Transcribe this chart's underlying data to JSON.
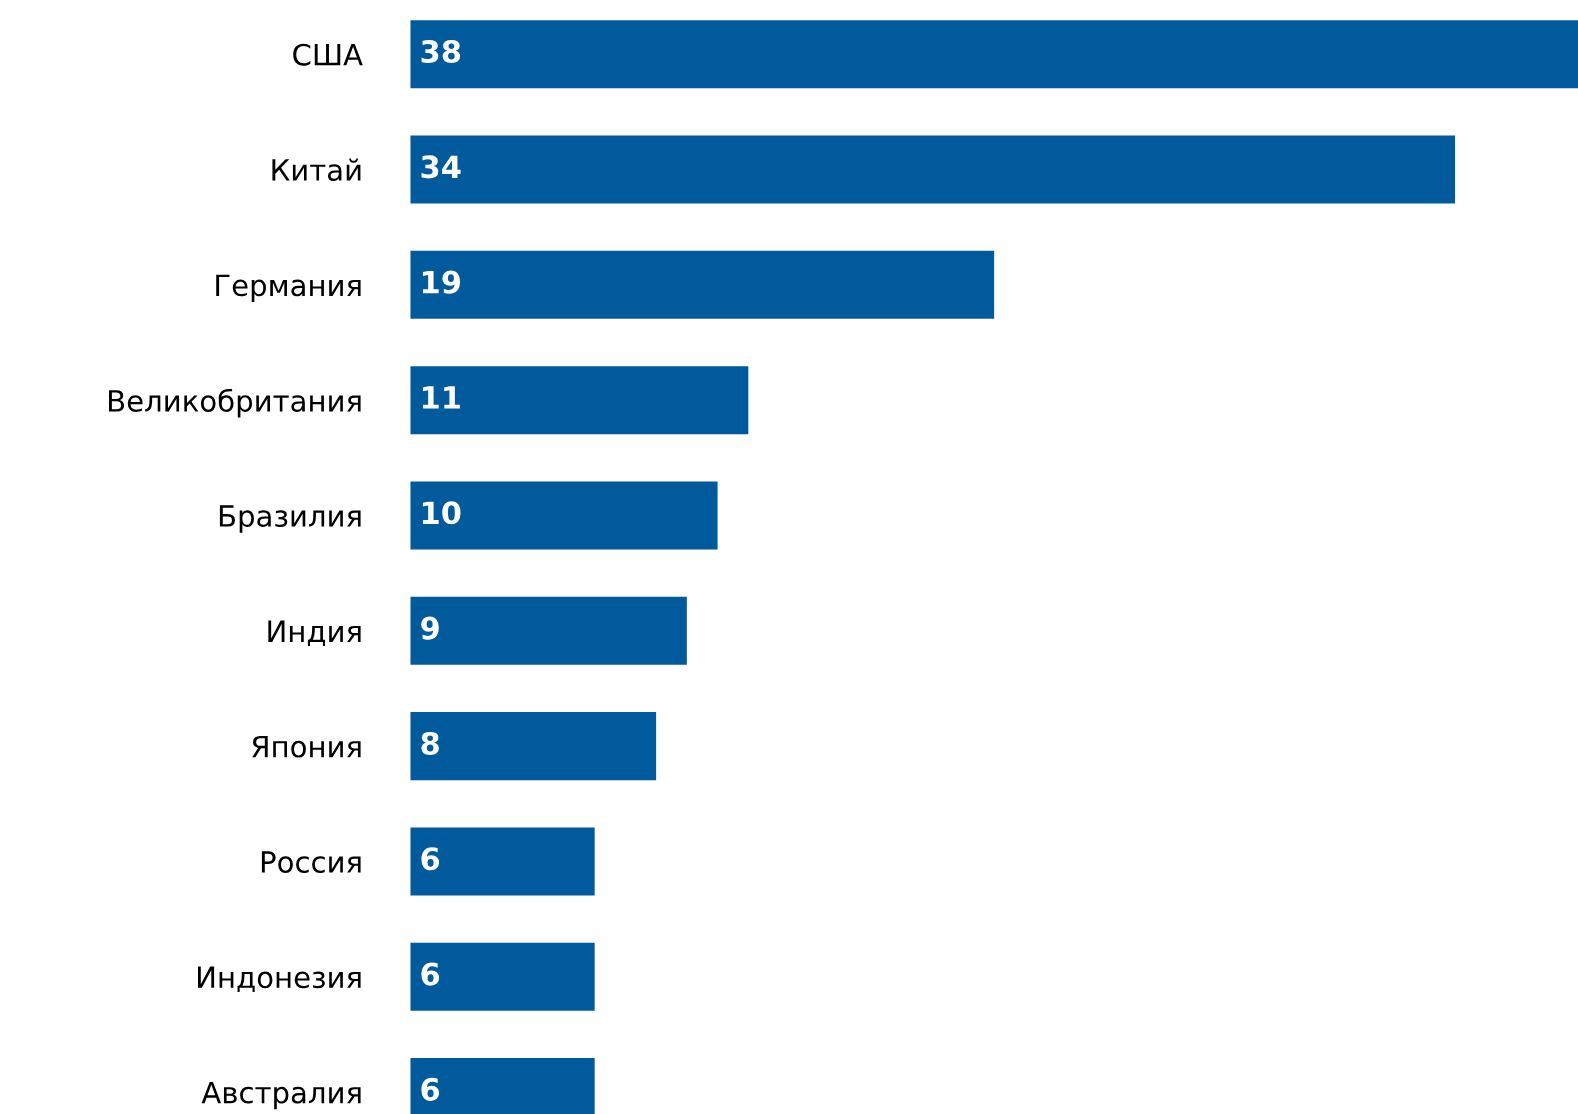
{
  "chart_data": {
    "type": "bar",
    "orientation": "horizontal",
    "categories": [
      "США",
      "Китай",
      "Германия",
      "Великобритания",
      "Бразилия",
      "Индия",
      "Япония",
      "Россия",
      "Индонезия",
      "Австралия"
    ],
    "values": [
      38,
      34,
      19,
      11,
      10,
      9,
      8,
      6,
      6,
      6
    ],
    "color": "#005a9c",
    "data_labels": true,
    "grid": false,
    "legend": false,
    "tick_labels": "y"
  }
}
